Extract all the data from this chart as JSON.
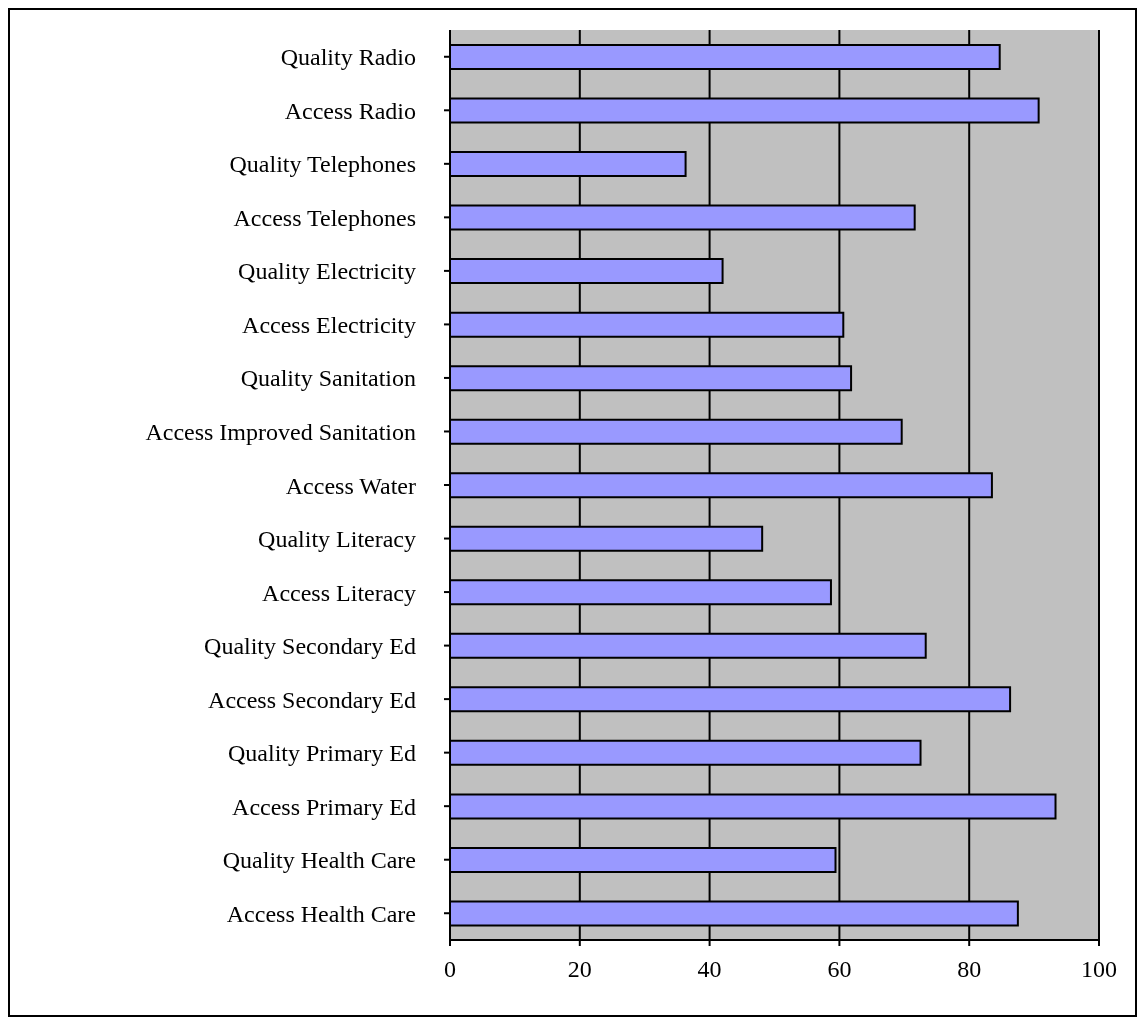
{
  "chart_data": {
    "type": "bar",
    "orientation": "horizontal",
    "categories": [
      "Quality Radio",
      "Access Radio",
      "Quality Telephones",
      "Access Telephones",
      "Quality Electricity",
      "Access Electricity",
      "Quality Sanitation",
      "Access Improved Sanitation",
      "Access Water",
      "Quality Literacy",
      "Access Literacy",
      "Quality Secondary Ed",
      "Access Secondary Ed",
      "Quality Primary Ed",
      "Access Primary Ed",
      "Quality Health Care",
      "Access Health Care"
    ],
    "values": [
      84.7,
      90.7,
      36.3,
      71.6,
      42.0,
      60.6,
      61.8,
      69.6,
      83.5,
      48.1,
      58.7,
      73.3,
      86.3,
      72.5,
      93.3,
      59.4,
      87.5
    ],
    "color": "#9999ff",
    "xlim": [
      0,
      100
    ],
    "xticks": [
      0,
      20,
      40,
      60,
      80,
      100
    ],
    "grid": "x"
  }
}
